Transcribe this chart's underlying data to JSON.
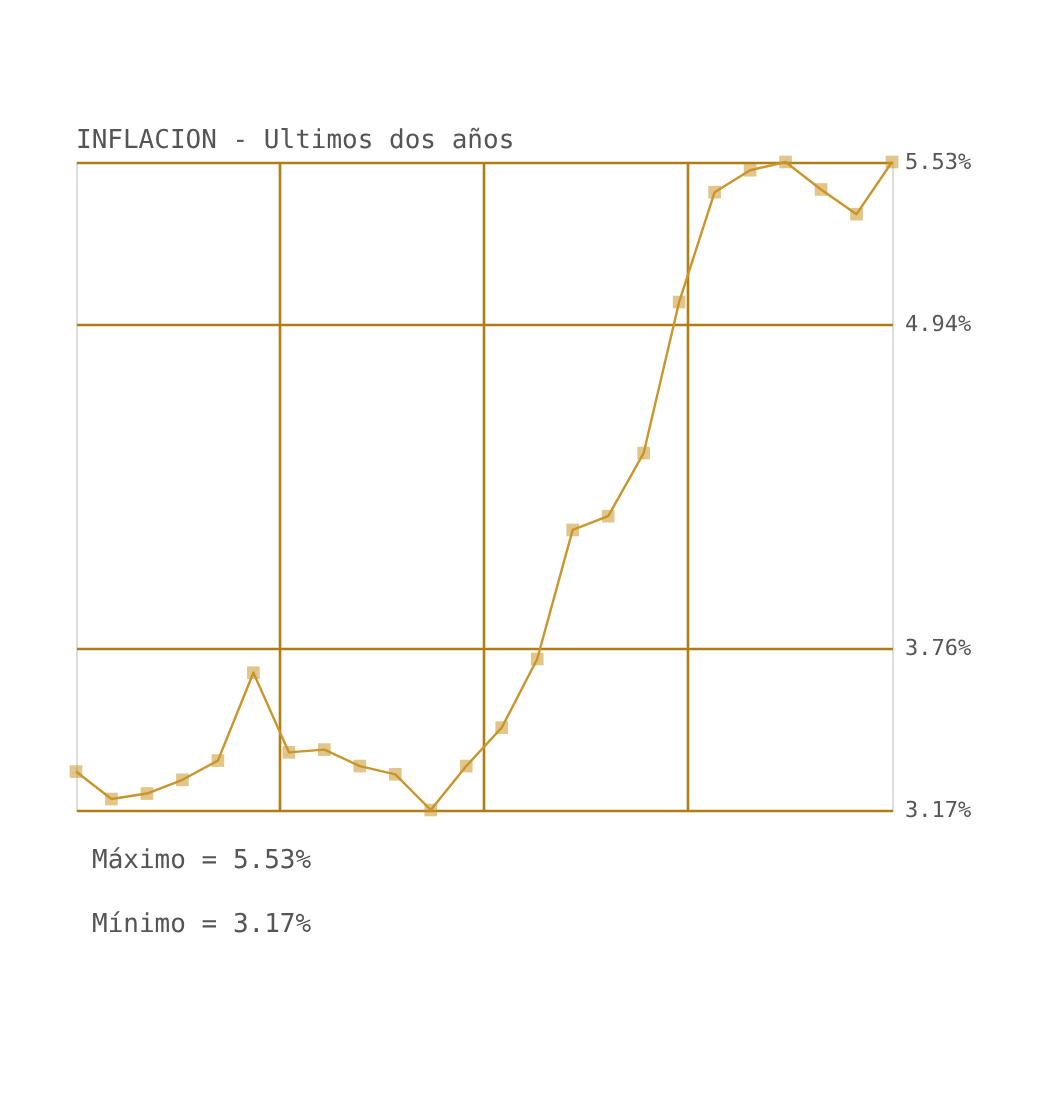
{
  "chart_data": {
    "type": "line",
    "title": "INFLACION - Ultimos dos años",
    "categories": [
      null,
      null,
      null,
      null,
      null,
      null,
      null,
      null,
      null,
      null,
      null,
      null,
      null,
      null,
      null,
      null,
      null,
      null,
      null,
      null,
      null,
      null,
      null,
      null
    ],
    "series": [
      {
        "color": "#c8962a",
        "values": [
          3.31,
          3.21,
          3.23,
          3.28,
          3.35,
          3.67,
          3.38,
          3.39,
          3.33,
          3.3,
          3.17,
          3.33,
          3.47,
          3.72,
          4.19,
          4.24,
          4.47,
          5.02,
          5.42,
          5.5,
          5.53,
          5.43,
          5.34,
          5.53
        ]
      }
    ],
    "ylim": [
      3.17,
      5.53
    ],
    "yticks": [
      {
        "value": 3.17,
        "label": "3.17%"
      },
      {
        "value": 3.76,
        "label": "3.76%"
      },
      {
        "value": 4.94,
        "label": "4.94%"
      },
      {
        "value": 5.53,
        "label": "5.53%"
      }
    ],
    "grid": true,
    "marker": "square",
    "line_style": "solid",
    "tick_labels": "y",
    "annotations": [
      "Máximo = 5.53%",
      "Mínimo = 3.17%"
    ]
  }
}
